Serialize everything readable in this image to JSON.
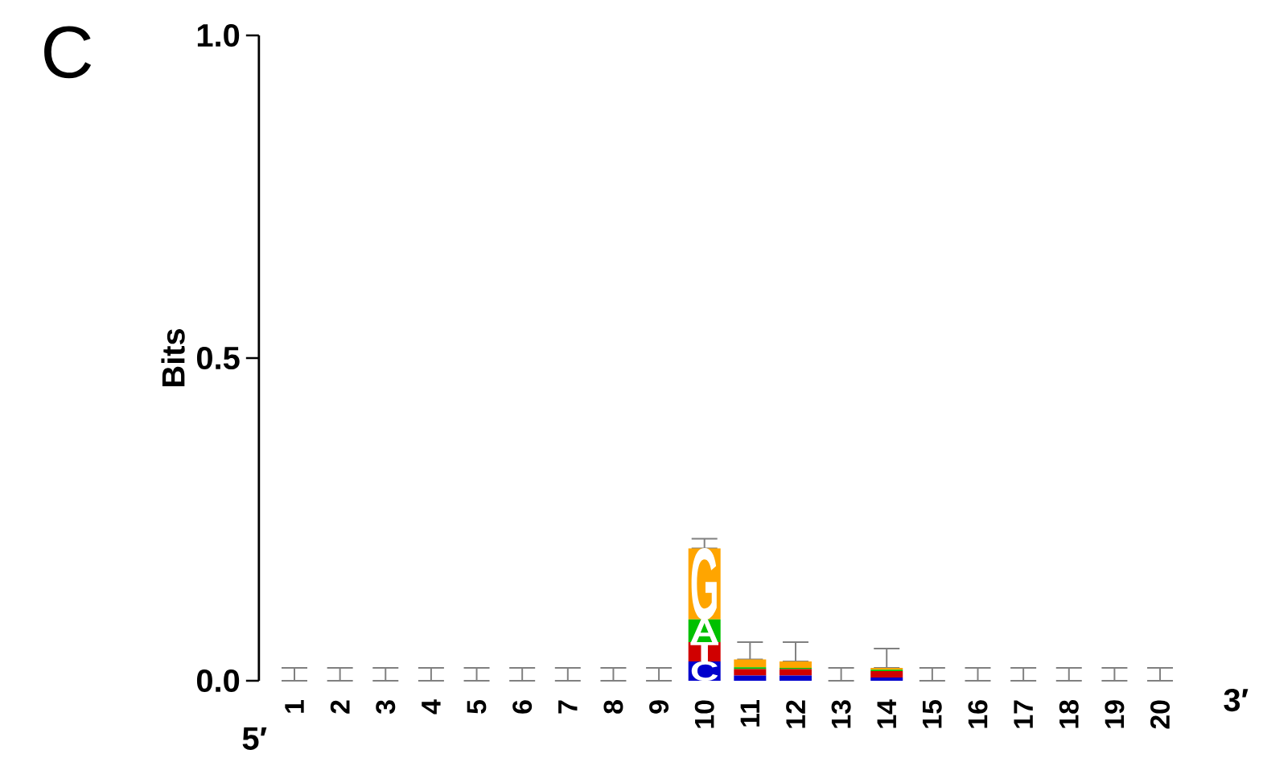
{
  "chart_data": {
    "type": "bar",
    "stacked": true,
    "title": "C",
    "ylabel": "Bits",
    "categories": [
      "1",
      "2",
      "3",
      "4",
      "5",
      "6",
      "7",
      "8",
      "9",
      "10",
      "11",
      "12",
      "13",
      "14",
      "15",
      "16",
      "17",
      "18",
      "19",
      "20"
    ],
    "series": [
      {
        "name": "C",
        "color": "#0000cc",
        "values": [
          0,
          0,
          0,
          0,
          0,
          0,
          0,
          0,
          0,
          0.03,
          0.008,
          0.008,
          0,
          0.005,
          0,
          0,
          0,
          0,
          0,
          0
        ]
      },
      {
        "name": "T",
        "color": "#d00000",
        "values": [
          0,
          0,
          0,
          0,
          0,
          0,
          0,
          0,
          0,
          0.03,
          0.01,
          0.01,
          0,
          0.01,
          0,
          0,
          0,
          0,
          0,
          0
        ]
      },
      {
        "name": "A",
        "color": "#00c000",
        "values": [
          0,
          0,
          0,
          0,
          0,
          0,
          0,
          0,
          0,
          0.035,
          0.003,
          0.002,
          0,
          0.002,
          0,
          0,
          0,
          0,
          0,
          0
        ]
      },
      {
        "name": "G",
        "color": "#ffa500",
        "values": [
          0,
          0,
          0,
          0,
          0,
          0,
          0,
          0,
          0,
          0.11,
          0.012,
          0.01,
          0,
          0.003,
          0,
          0,
          0,
          0,
          0,
          0
        ],
        "errors": [
          [
            0,
            0.02
          ],
          [
            0,
            0.02
          ],
          [
            0,
            0.02
          ],
          [
            0,
            0.02
          ],
          [
            0,
            0.02
          ],
          [
            0,
            0.02
          ],
          [
            0,
            0.02
          ],
          [
            0,
            0.02
          ],
          [
            0,
            0.02
          ],
          [
            0.205,
            0.22
          ],
          [
            0.033,
            0.06
          ],
          [
            0.03,
            0.06
          ],
          [
            0,
            0.02
          ],
          [
            0.02,
            0.05
          ],
          [
            0,
            0.02
          ],
          [
            0,
            0.02
          ],
          [
            0,
            0.02
          ],
          [
            0,
            0.02
          ],
          [
            0,
            0.02
          ],
          [
            0,
            0.02
          ]
        ]
      }
    ],
    "ylim": [
      0,
      1
    ],
    "yticks": [
      {
        "value": 0,
        "label": "0.0"
      },
      {
        "value": 0.5,
        "label": "0.5"
      },
      {
        "value": 1,
        "label": "1.0"
      }
    ],
    "annotations": [
      "5′",
      "3′"
    ]
  }
}
